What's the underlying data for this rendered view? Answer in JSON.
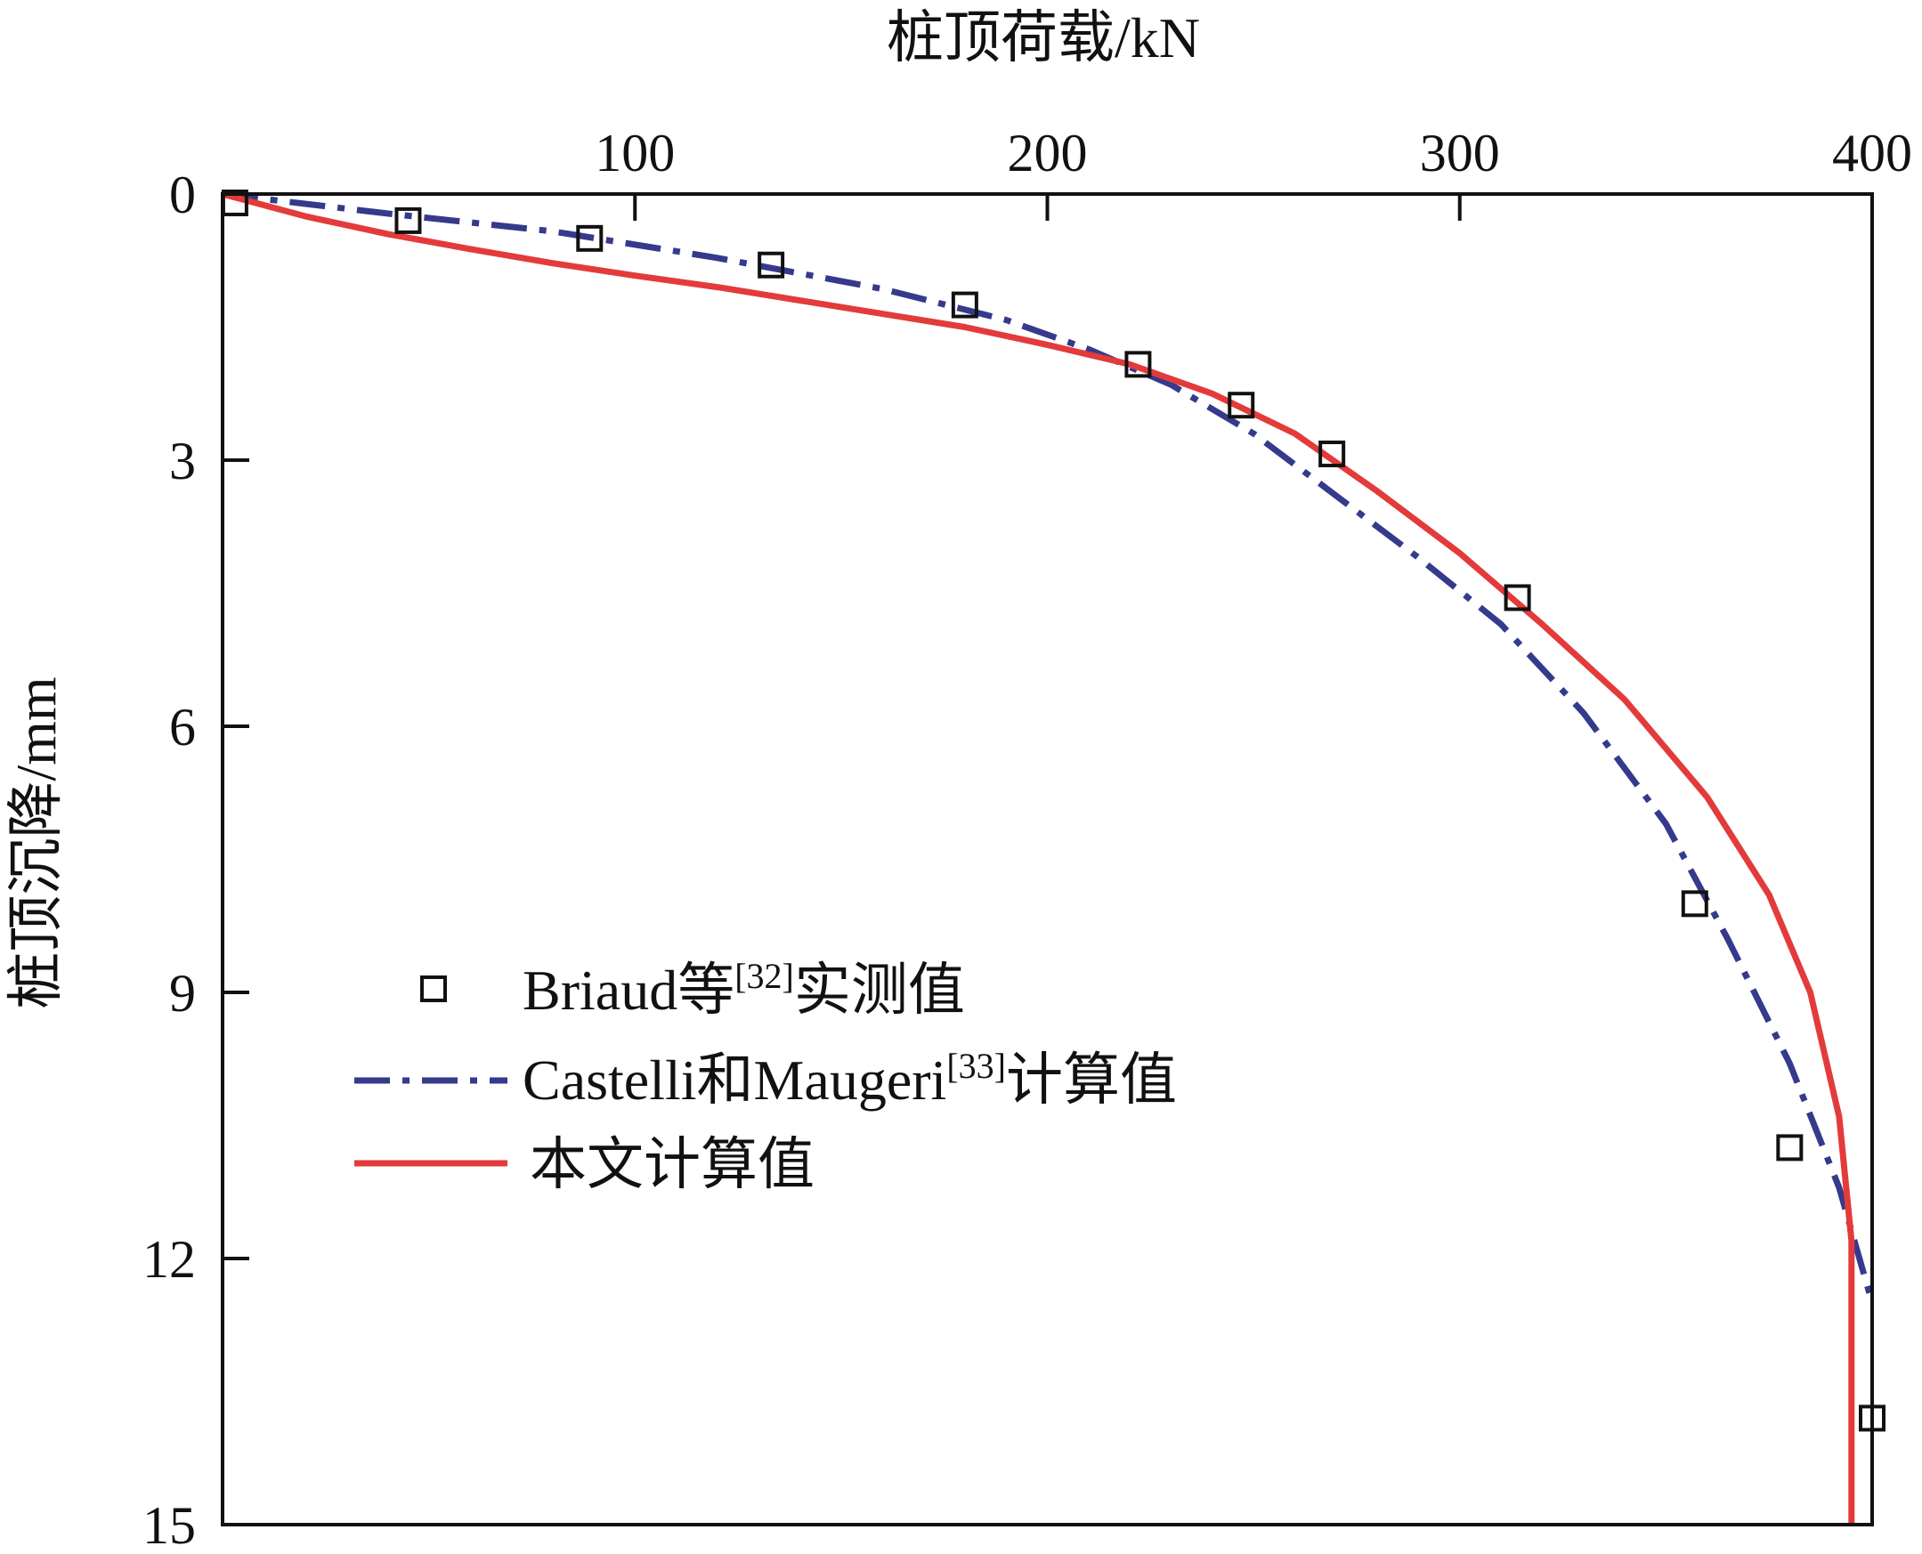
{
  "chart_data": {
    "type": "line",
    "xlabel": "桩顶荷载/kN",
    "ylabel": "桩顶沉降/mm",
    "x_axis_position": "top",
    "y_axis_inverted": true,
    "xlim": [
      0,
      400
    ],
    "ylim": [
      0,
      15
    ],
    "xticks": [
      "100",
      "200",
      "300",
      "400"
    ],
    "yticks": [
      "0",
      "3",
      "6",
      "9",
      "12",
      "15"
    ],
    "grid": false,
    "legend_position": "left-center",
    "series": [
      {
        "name": "Briaud等",
        "name_sup": "[32]",
        "name_suffix": "实测值",
        "marker": "square-open",
        "color": "#111111",
        "points": [
          [
            3,
            0.1
          ],
          [
            45,
            0.3
          ],
          [
            89,
            0.5
          ],
          [
            133,
            0.8
          ],
          [
            180,
            1.25
          ],
          [
            222,
            1.92
          ],
          [
            247,
            2.38
          ],
          [
            269,
            2.93
          ],
          [
            314,
            4.55
          ],
          [
            357,
            8.0
          ],
          [
            380,
            10.75
          ],
          [
            400,
            13.8
          ]
        ]
      },
      {
        "name": "Castelli和Maugeri",
        "name_sup": "[33]",
        "name_suffix": "计算值",
        "line_style": "dash-dot",
        "color": "#353a8c",
        "points": [
          [
            0,
            0
          ],
          [
            40,
            0.22
          ],
          [
            80,
            0.42
          ],
          [
            120,
            0.72
          ],
          [
            160,
            1.07
          ],
          [
            190,
            1.42
          ],
          [
            210,
            1.75
          ],
          [
            230,
            2.15
          ],
          [
            250,
            2.7
          ],
          [
            270,
            3.4
          ],
          [
            290,
            4.1
          ],
          [
            310,
            4.85
          ],
          [
            330,
            5.85
          ],
          [
            350,
            7.1
          ],
          [
            365,
            8.4
          ],
          [
            380,
            9.8
          ],
          [
            392,
            11.2
          ],
          [
            400,
            12.5
          ]
        ]
      },
      {
        "name": "本文计算值",
        "line_style": "solid",
        "color": "#e33b3b",
        "points": [
          [
            0,
            0
          ],
          [
            20,
            0.25
          ],
          [
            40,
            0.45
          ],
          [
            60,
            0.62
          ],
          [
            80,
            0.78
          ],
          [
            100,
            0.92
          ],
          [
            120,
            1.05
          ],
          [
            140,
            1.2
          ],
          [
            160,
            1.35
          ],
          [
            180,
            1.5
          ],
          [
            200,
            1.7
          ],
          [
            220,
            1.92
          ],
          [
            240,
            2.25
          ],
          [
            260,
            2.7
          ],
          [
            280,
            3.35
          ],
          [
            300,
            4.05
          ],
          [
            320,
            4.85
          ],
          [
            340,
            5.7
          ],
          [
            360,
            6.8
          ],
          [
            375,
            7.9
          ],
          [
            385,
            9.0
          ],
          [
            392,
            10.4
          ],
          [
            395,
            11.8
          ],
          [
            395,
            13.5
          ],
          [
            395,
            15
          ]
        ]
      }
    ]
  }
}
